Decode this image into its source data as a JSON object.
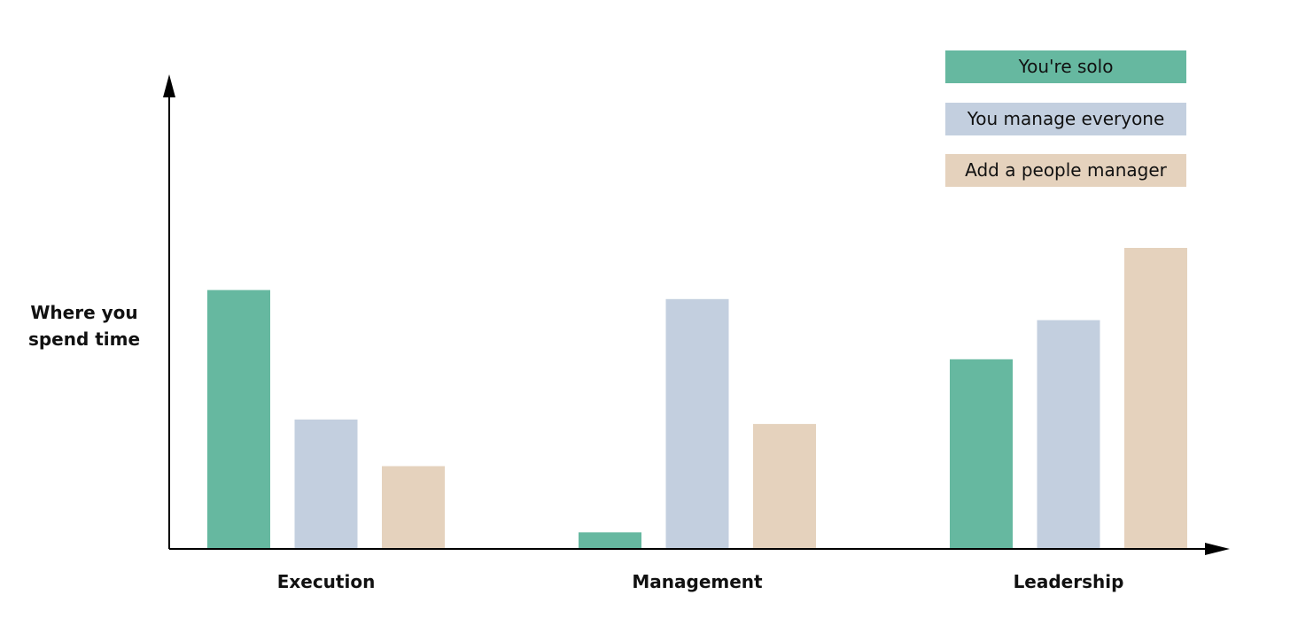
{
  "chart_data": {
    "type": "bar",
    "ylabel": "Where you spend time",
    "xlabel": "",
    "categories": [
      "Execution",
      "Management",
      "Leadership"
    ],
    "series": [
      {
        "name": "You're solo",
        "color": "#66b8a0",
        "values": [
          86,
          5.5,
          63
        ]
      },
      {
        "name": "You manage everyone",
        "color": "#c3cfdf",
        "values": [
          43,
          83,
          76
        ]
      },
      {
        "name": "Add a people manager",
        "color": "#e5d2bd",
        "values": [
          27.5,
          41.5,
          100
        ]
      }
    ],
    "ylim": [
      0,
      100
    ],
    "grid": false,
    "legend_position": "top-right",
    "axis_ticks": false
  }
}
